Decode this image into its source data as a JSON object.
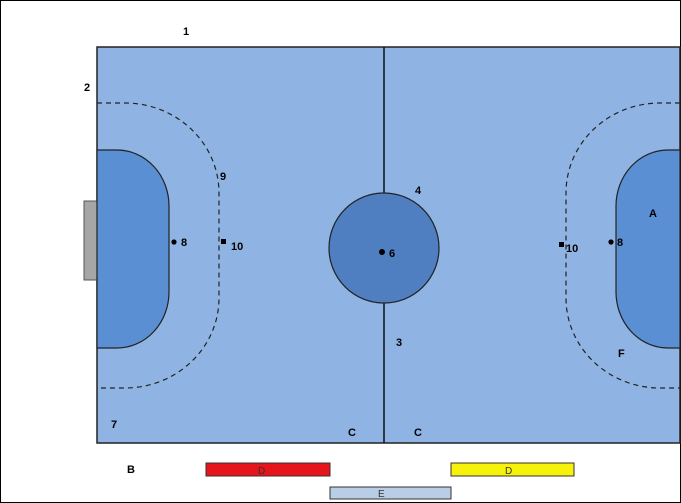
{
  "labels": {
    "l1": "1",
    "l2": "2",
    "l3": "3",
    "l4": "4",
    "l6": "6",
    "l7": "7",
    "l8_left": "8",
    "l8_right": "8",
    "l9": "9",
    "l10_left": "10",
    "l10_right": "10",
    "lA": "A",
    "lB": "B",
    "lC_left": "C",
    "lC_right": "C",
    "lD_red": "D",
    "lD_yellow": "D",
    "lE": "E",
    "lF": "F"
  },
  "colors": {
    "court": "#8fb4e3",
    "goal_area": "#5b8fd4",
    "center_circle": "#4f7fc0",
    "goal": "#a6a6a6",
    "bench_red": "#e8141b",
    "bench_yellow": "#f7f20a",
    "table": "#b9cde6"
  }
}
